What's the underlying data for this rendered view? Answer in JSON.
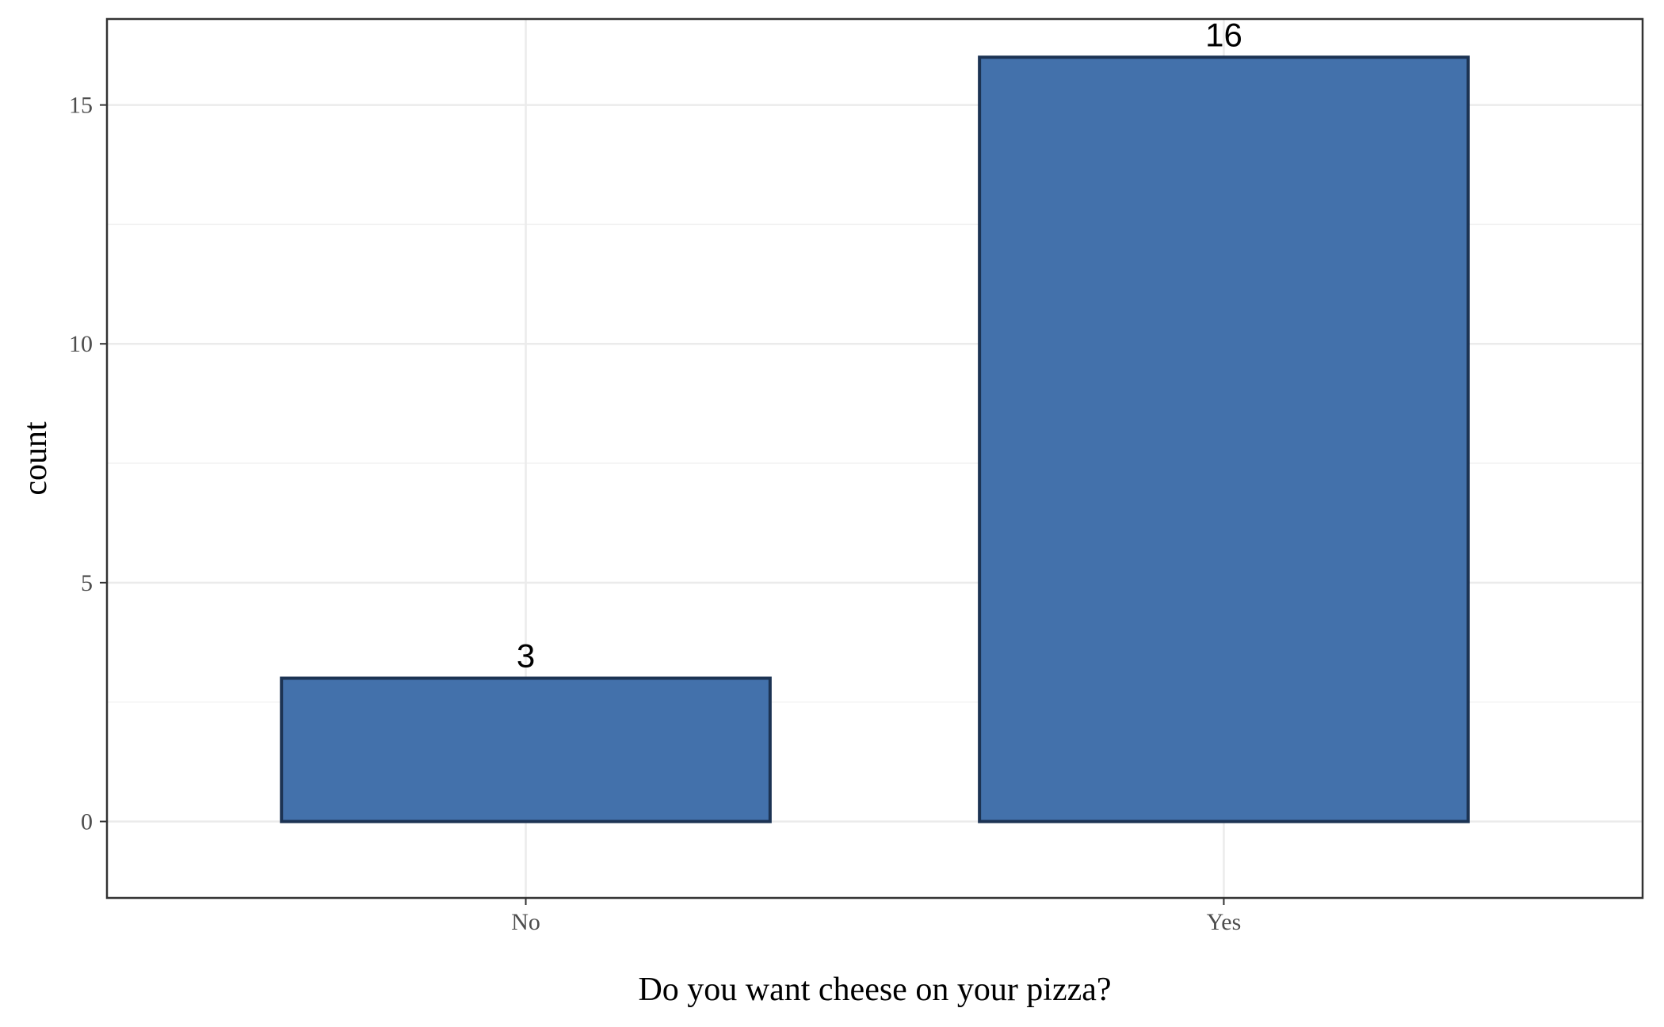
{
  "chart_data": {
    "type": "bar",
    "categories": [
      "No",
      "Yes"
    ],
    "values": [
      3,
      16
    ],
    "data_labels": [
      "3",
      "16"
    ],
    "title": "",
    "xlabel": "Do you want cheese on your pizza?",
    "ylabel": "count",
    "ylim": [
      -1.6,
      16.8
    ],
    "yticks": [
      0,
      5,
      10,
      15
    ],
    "ytick_labels": [
      "0",
      "5",
      "10",
      "15"
    ],
    "grid": true,
    "legend": "none",
    "colors": {
      "bar_fill": "#4371AB",
      "bar_stroke": "#1C3353",
      "grid_major": "#EBEBEB",
      "grid_minor": "#F2F2F2",
      "panel_border": "#333333"
    }
  }
}
